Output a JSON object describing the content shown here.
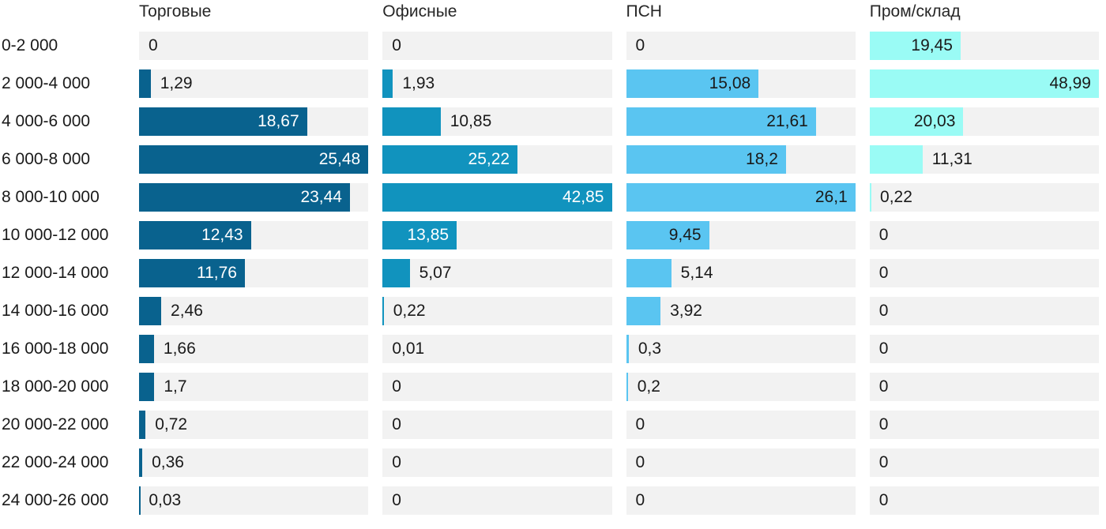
{
  "chart_data": {
    "type": "bar",
    "orientation": "horizontal",
    "title": "",
    "categories": [
      "0-2 000",
      "2 000-4 000",
      "4 000-6 000",
      "6 000-8 000",
      "8 000-10 000",
      "10 000-12 000",
      "12 000-14 000",
      "14 000-16 000",
      "16 000-18 000",
      "18 000-20 000",
      "20 000-22 000",
      "22 000-24 000",
      "24 000-26 000"
    ],
    "series": [
      {
        "name": "Торговые",
        "color": "#09628e",
        "inside_label_color": "#ffffff",
        "values": [
          0,
          1.29,
          18.67,
          25.48,
          23.44,
          12.43,
          11.76,
          2.46,
          1.66,
          1.7,
          0.72,
          0.36,
          0.03
        ]
      },
      {
        "name": "Офисные",
        "color": "#1193be",
        "inside_label_color": "#ffffff",
        "values": [
          0,
          1.93,
          10.85,
          25.22,
          42.85,
          13.85,
          5.07,
          0.22,
          0.01,
          0,
          0,
          0,
          0
        ]
      },
      {
        "name": "ПСН",
        "color": "#5ac5f1",
        "inside_label_color": "#1a1a1a",
        "values": [
          0,
          15.08,
          21.61,
          18.2,
          26.1,
          9.45,
          5.14,
          3.92,
          0.3,
          0.2,
          0,
          0,
          0
        ]
      },
      {
        "name": "Пром/склад",
        "color": "#9afbf5",
        "inside_label_color": "#1a1a1a",
        "values": [
          19.45,
          48.99,
          20.03,
          11.31,
          0.22,
          0,
          0,
          0,
          0,
          0,
          0,
          0,
          0
        ]
      }
    ],
    "layout": {
      "track_color": "#f2f2f2",
      "header_text_color": "#262626",
      "label_text_color": "#1a1a1a",
      "decimal_separator": ",",
      "scaling": "per-series: series max value spans full track width",
      "legend_position": "column headers",
      "grid": "off"
    }
  }
}
